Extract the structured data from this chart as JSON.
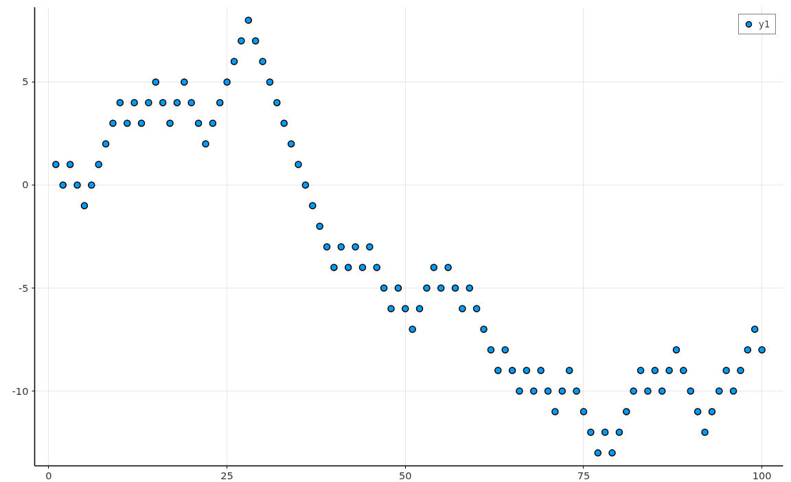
{
  "chart_data": {
    "type": "scatter",
    "x": [
      1,
      2,
      3,
      4,
      5,
      6,
      7,
      8,
      9,
      10,
      11,
      12,
      13,
      14,
      15,
      16,
      17,
      18,
      19,
      20,
      21,
      22,
      23,
      24,
      25,
      26,
      27,
      28,
      29,
      30,
      31,
      32,
      33,
      34,
      35,
      36,
      37,
      38,
      39,
      40,
      41,
      42,
      43,
      44,
      45,
      46,
      47,
      48,
      49,
      50,
      51,
      52,
      53,
      54,
      55,
      56,
      57,
      58,
      59,
      60,
      61,
      62,
      63,
      64,
      65,
      66,
      67,
      68,
      69,
      70,
      71,
      72,
      73,
      74,
      75,
      76,
      77,
      78,
      79,
      80,
      81,
      82,
      83,
      84,
      85,
      86,
      87,
      88,
      89,
      90,
      91,
      92,
      93,
      94,
      95,
      96,
      97,
      98,
      99,
      100
    ],
    "series": [
      {
        "name": "y1",
        "color": "#009af9",
        "values": [
          1,
          0,
          1,
          0,
          -1,
          0,
          1,
          2,
          3,
          4,
          3,
          4,
          3,
          4,
          5,
          4,
          3,
          4,
          5,
          4,
          3,
          2,
          3,
          4,
          5,
          6,
          7,
          8,
          7,
          6,
          5,
          4,
          3,
          2,
          1,
          0,
          -1,
          -2,
          -3,
          -4,
          -3,
          -4,
          -3,
          -4,
          -3,
          -4,
          -5,
          -6,
          -5,
          -6,
          -7,
          -6,
          -5,
          -4,
          -5,
          -4,
          -5,
          -6,
          -5,
          -6,
          -7,
          -8,
          -9,
          -8,
          -9,
          -10,
          -9,
          -10,
          -9,
          -10,
          -11,
          -10,
          -9,
          -10,
          -11,
          -12,
          -13,
          -12,
          -13,
          -12,
          -11,
          -10,
          -9,
          -10,
          -9,
          -10,
          -9,
          -8,
          -9,
          -10,
          -11,
          -12,
          -11,
          -10,
          -9,
          -10,
          -9,
          -8,
          -7,
          -8
        ]
      }
    ],
    "xlim": [
      -1.97,
      102.97
    ],
    "ylim": [
      -13.63,
      8.63
    ],
    "xticks": [
      0,
      25,
      50,
      75,
      100
    ],
    "yticks": [
      -10,
      -5,
      0,
      5
    ],
    "grid": true,
    "legend": "top right",
    "marker": "circle"
  }
}
